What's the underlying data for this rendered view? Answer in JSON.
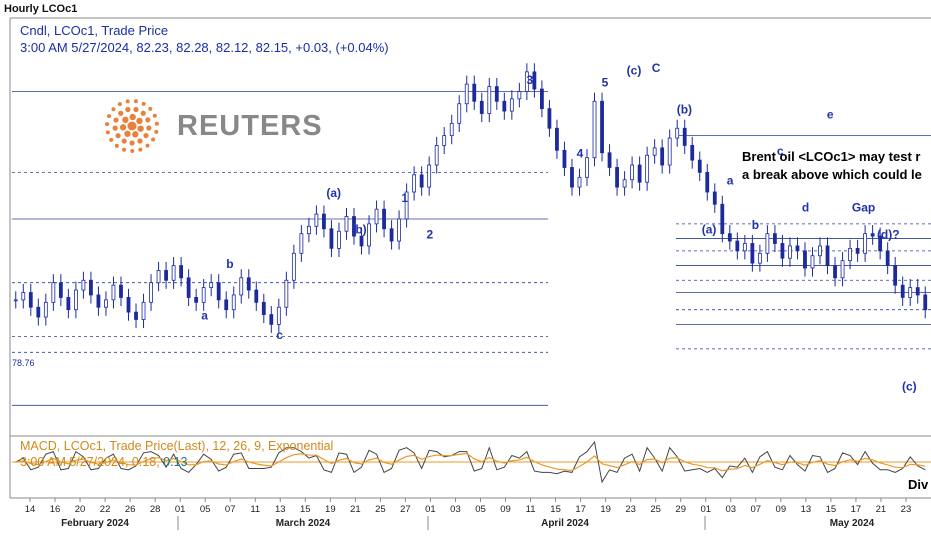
{
  "window": {
    "title": "Hourly LCOc1"
  },
  "legend": {
    "line1": "Cndl, LCOc1, Trade Price",
    "line2": "3:00 AM 5/27/2024, 82.23, 82.28, 82.12, 82.15, +0.03, (+0.04%)"
  },
  "logo": {
    "text": "REUTERS",
    "color": "#e8823a"
  },
  "note": {
    "line1": "Brent oil <LCOc1> may test r",
    "line2": "a break above which could le"
  },
  "price_label": "78.76",
  "macd_legend": {
    "line1": "MACD, LCOc1, Trade Price(Last),  12, 26, 9, Exponential",
    "line2_prefix": "3:00 AM 5/27/2024, 0.18, ",
    "line2_signal": "0.13"
  },
  "colors": {
    "candle": "#1c2a9c",
    "wave_label": "#2233aa",
    "level_line": "#2b3f9a",
    "macd_signal": "#e89a2a",
    "macd_line": "#444444"
  },
  "chart_data": {
    "type": "line",
    "series": [
      {
        "values": [
          80.9,
          81.2,
          80.6,
          80.2,
          80.8,
          81.6,
          81.0,
          80.5,
          81.3,
          81.7,
          81.1,
          80.6,
          80.9,
          81.5,
          81.0,
          80.4,
          80.1,
          80.8,
          81.6,
          82.1,
          81.7,
          82.3,
          81.8,
          81.0,
          80.8,
          81.4,
          81.6,
          80.9,
          80.5,
          81.1,
          81.8,
          81.3,
          80.8,
          80.3,
          79.9,
          80.6,
          81.7,
          82.8,
          83.6,
          83.9,
          84.4,
          83.8,
          83.0,
          83.7,
          84.3,
          83.5,
          83.1,
          84.0,
          84.6,
          83.8,
          83.3,
          84.2,
          85.3,
          86.0,
          85.5,
          86.4,
          87.2,
          87.6,
          88.1,
          88.9,
          89.7,
          89.0,
          88.5,
          89.6,
          89.0,
          88.6,
          89.1,
          89.4,
          90.2,
          89.5,
          88.7,
          87.9,
          87.0,
          86.3,
          85.5,
          85.9,
          86.7,
          89.0,
          86.9,
          86.3,
          85.5,
          85.8,
          86.4,
          85.7,
          86.8,
          87.1,
          86.4,
          87.5,
          87.9,
          87.2,
          86.6,
          86.1,
          85.3,
          84.8,
          83.6,
          83.3,
          82.9,
          83.2,
          82.4,
          82.8,
          83.6,
          83.2,
          82.6,
          83.1,
          82.9,
          82.2,
          82.7,
          83.1,
          82.3,
          81.8,
          82.5,
          83.0,
          82.8,
          83.6,
          83.5,
          82.9,
          82.3,
          81.5,
          81.0,
          81.4,
          81.1,
          80.5
        ]
      }
    ],
    "x_ticks": [
      "14",
      "16",
      "20",
      "22",
      "26",
      "28",
      "01",
      "05",
      "07",
      "11",
      "13",
      "15",
      "19",
      "21",
      "25",
      "27",
      "01",
      "03",
      "05",
      "09",
      "11",
      "15",
      "17",
      "19",
      "23",
      "25",
      "29",
      "01",
      "03",
      "07",
      "09",
      "13",
      "15",
      "17",
      "21",
      "23"
    ],
    "month_labels": [
      "February 2024",
      "March 2024",
      "April 2024",
      "May 2024"
    ],
    "ylim": [
      76.0,
      91.5
    ],
    "horizontal_levels": [
      {
        "value": 89.4,
        "style": "solid"
      },
      {
        "value": 86.1,
        "style": "dashed"
      },
      {
        "value": 84.2,
        "style": "solid"
      },
      {
        "value": 81.6,
        "style": "dashed"
      },
      {
        "value": 79.4,
        "style": "dashed"
      },
      {
        "value": 78.76,
        "style": "dashed"
      },
      {
        "value": 76.6,
        "style": "solid"
      }
    ],
    "wave_labels": [
      {
        "text": "a",
        "price": 80.1,
        "tick": 7
      },
      {
        "text": "b",
        "price": 82.2,
        "tick": 8
      },
      {
        "text": "c",
        "price": 79.3,
        "tick": 10
      },
      {
        "text": "(a)",
        "price": 85.1,
        "tick": 12
      },
      {
        "text": "(b)",
        "price": 83.6,
        "tick": 13
      },
      {
        "text": "1",
        "price": 84.9,
        "tick": 15
      },
      {
        "text": "2",
        "price": 83.4,
        "tick": 16
      },
      {
        "text": "3",
        "price": 89.7,
        "tick": 20
      },
      {
        "text": "4",
        "price": 86.7,
        "tick": 22
      },
      {
        "text": "5",
        "price": 89.6,
        "tick": 23
      },
      {
        "text": "(c)",
        "price": 90.1,
        "tick": 24
      },
      {
        "text": "C",
        "price": 90.2,
        "tick": 25
      },
      {
        "text": "(b)",
        "price": 88.5,
        "tick": 26
      },
      {
        "text": "(a)",
        "price": 83.6,
        "tick": 27
      },
      {
        "text": "a",
        "price": 85.6,
        "tick": 28
      },
      {
        "text": "b",
        "price": 83.8,
        "tick": 29
      },
      {
        "text": "c",
        "price": 86.8,
        "tick": 30
      },
      {
        "text": "d",
        "price": 84.5,
        "tick": 31
      },
      {
        "text": "e",
        "price": 88.3,
        "tick": 32
      },
      {
        "text": "Gap",
        "price": 84.5,
        "tick": 33
      },
      {
        "text": "(d)?",
        "price": 83.4,
        "tick": 34
      },
      {
        "text": "(c)",
        "price": 77.2,
        "tick": 35
      }
    ],
    "macd_note": "Div"
  }
}
